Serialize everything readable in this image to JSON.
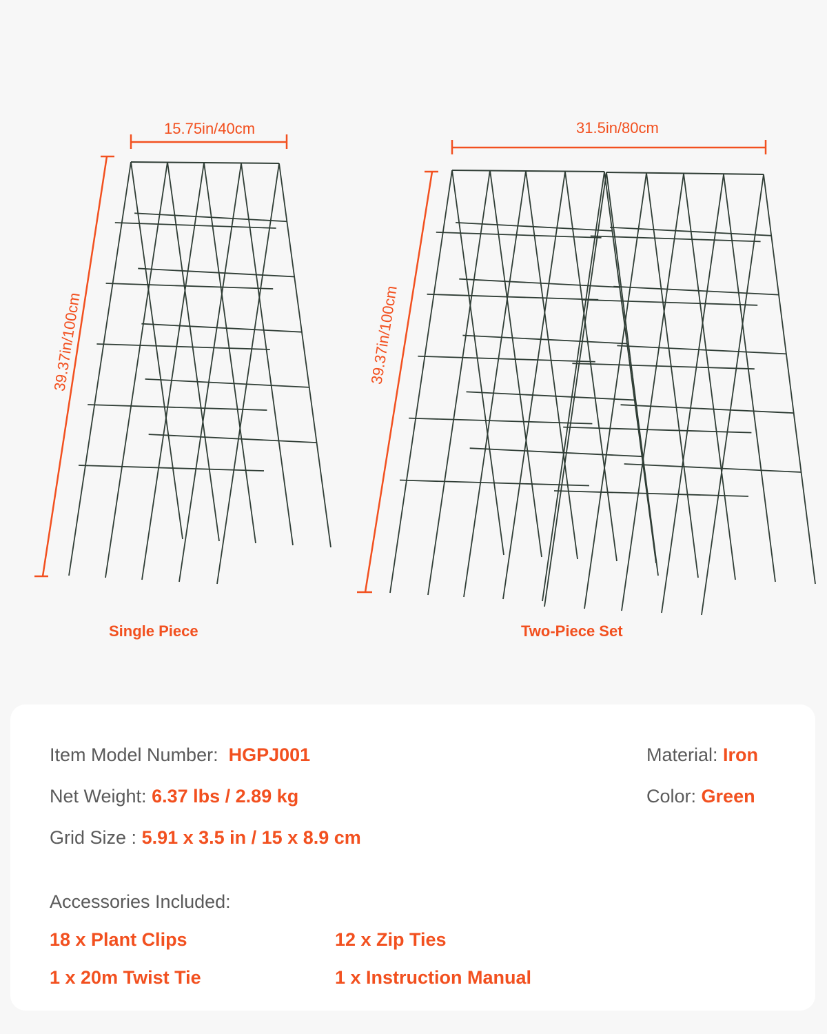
{
  "colors": {
    "accent": "#f2501f",
    "wire": "#2f3d35",
    "background": "#f7f7f7",
    "label": "#5a5a5a"
  },
  "single": {
    "width": "15.75in/40cm",
    "height": "39.37in/100cm",
    "caption": "Single Piece"
  },
  "set": {
    "width": "31.5in/80cm",
    "height": "39.37in/100cm",
    "caption": "Two-Piece Set"
  },
  "specs": {
    "model_label": "Item Model Number:",
    "model_value": "HGPJ001",
    "weight_label": "Net Weight:",
    "weight_value": "6.37 lbs / 2.89 kg",
    "grid_label": "Grid Size :",
    "grid_value": "5.91 x 3.5 in / 15 x 8.9 cm",
    "material_label": "Material:",
    "material_value": "Iron",
    "color_label": "Color:",
    "color_value": "Green"
  },
  "accessories": {
    "title": "Accessories Included:",
    "items": [
      "18 x Plant Clips",
      "12 x Zip Ties",
      "1 x 20m Twist Tie",
      "1 x Instruction Manual"
    ]
  }
}
